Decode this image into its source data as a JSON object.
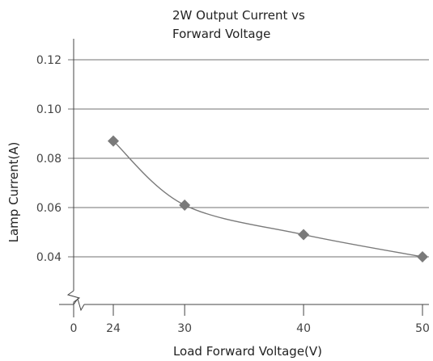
{
  "chart_data": {
    "type": "line",
    "title_lines": [
      "2W  Output Current vs",
      "Forward Voltage"
    ],
    "xlabel": "Load Forward Voltage(V)",
    "ylabel": "Lamp Current(A)",
    "x_tick_labels": [
      "0",
      "24",
      "30",
      "40",
      "50"
    ],
    "y_tick_labels": [
      "0.04",
      "0.06",
      "0.08",
      "0.10",
      "0.12"
    ],
    "x_ticks": [
      24,
      30,
      40,
      50
    ],
    "y_ticks": [
      0.04,
      0.06,
      0.08,
      0.1,
      0.12
    ],
    "xlim": [
      24,
      50
    ],
    "ylim": [
      0.04,
      0.12
    ],
    "grid": true,
    "broken_axes": true,
    "series": [
      {
        "x": [
          24,
          30,
          40,
          50
        ],
        "y": [
          0.087,
          0.061,
          0.049,
          0.04
        ]
      }
    ],
    "colors": {
      "series": "#7a7a7a",
      "marker": "#7a7a7a",
      "grid": "#707070",
      "axis": "#444444",
      "text": "#222222"
    }
  }
}
